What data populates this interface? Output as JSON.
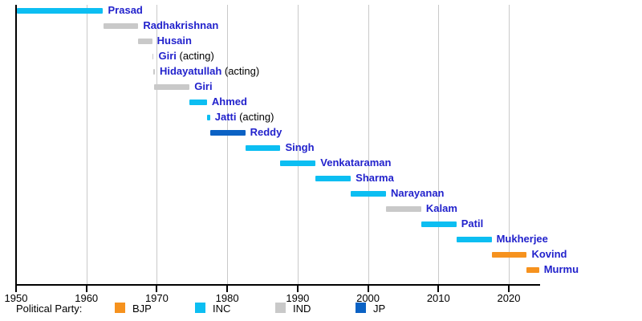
{
  "chart_data": {
    "type": "bar",
    "variant": "horizontal-gantt-timeline",
    "title": "",
    "xlabel": "",
    "ylabel": "",
    "xlim": [
      1950,
      2024.3
    ],
    "x_ticks": [
      1950,
      1960,
      1970,
      1980,
      1990,
      2000,
      2010,
      2020
    ],
    "grid": "vertical gridlines at each decade",
    "legend_position": "bottom",
    "name_link_color": "#2222CC",
    "party_colors": {
      "BJP": "#F6921E",
      "INC": "#0CBEF2",
      "IND": "#C9C9C9",
      "JP": "#0B62C4"
    },
    "series": [
      {
        "label": "Prasad",
        "suffix": "",
        "party": "INC",
        "start": 1950.07,
        "end": 1962.37
      },
      {
        "label": "Radhakrishnan",
        "suffix": "",
        "party": "IND",
        "start": 1962.37,
        "end": 1967.37
      },
      {
        "label": "Husain",
        "suffix": "",
        "party": "IND",
        "start": 1967.37,
        "end": 1969.34
      },
      {
        "label": "Giri",
        "suffix": " (acting)",
        "party": "IND",
        "start": 1969.34,
        "end": 1969.55
      },
      {
        "label": "Hidayatullah",
        "suffix": " (acting)",
        "party": "IND",
        "start": 1969.55,
        "end": 1969.65
      },
      {
        "label": "Giri",
        "suffix": "",
        "party": "IND",
        "start": 1969.65,
        "end": 1974.65
      },
      {
        "label": "Ahmed",
        "suffix": "",
        "party": "INC",
        "start": 1974.65,
        "end": 1977.12
      },
      {
        "label": "Jatti",
        "suffix": " (acting)",
        "party": "INC",
        "start": 1977.12,
        "end": 1977.56
      },
      {
        "label": "Reddy",
        "suffix": "",
        "party": "JP",
        "start": 1977.56,
        "end": 1982.56
      },
      {
        "label": "Singh",
        "suffix": "",
        "party": "INC",
        "start": 1982.56,
        "end": 1987.56
      },
      {
        "label": "Venkataraman",
        "suffix": "",
        "party": "INC",
        "start": 1987.56,
        "end": 1992.56
      },
      {
        "label": "Sharma",
        "suffix": "",
        "party": "INC",
        "start": 1992.56,
        "end": 1997.56
      },
      {
        "label": "Narayanan",
        "suffix": "",
        "party": "INC",
        "start": 1997.56,
        "end": 2002.56
      },
      {
        "label": "Kalam",
        "suffix": "",
        "party": "IND",
        "start": 2002.56,
        "end": 2007.56
      },
      {
        "label": "Patil",
        "suffix": "",
        "party": "INC",
        "start": 2007.56,
        "end": 2012.56
      },
      {
        "label": "Mukherjee",
        "suffix": "",
        "party": "INC",
        "start": 2012.56,
        "end": 2017.56
      },
      {
        "label": "Kovind",
        "suffix": "",
        "party": "BJP",
        "start": 2017.56,
        "end": 2022.56
      },
      {
        "label": "Murmu",
        "suffix": "",
        "party": "BJP",
        "start": 2022.56,
        "end": 2024.3
      }
    ],
    "legend": {
      "title": "Political Party:",
      "entries": [
        {
          "label": "BJP",
          "color": "#F6921E"
        },
        {
          "label": "INC",
          "color": "#0CBEF2"
        },
        {
          "label": "IND",
          "color": "#C9C9C9"
        },
        {
          "label": "JP",
          "color": "#0B62C4"
        }
      ]
    }
  }
}
